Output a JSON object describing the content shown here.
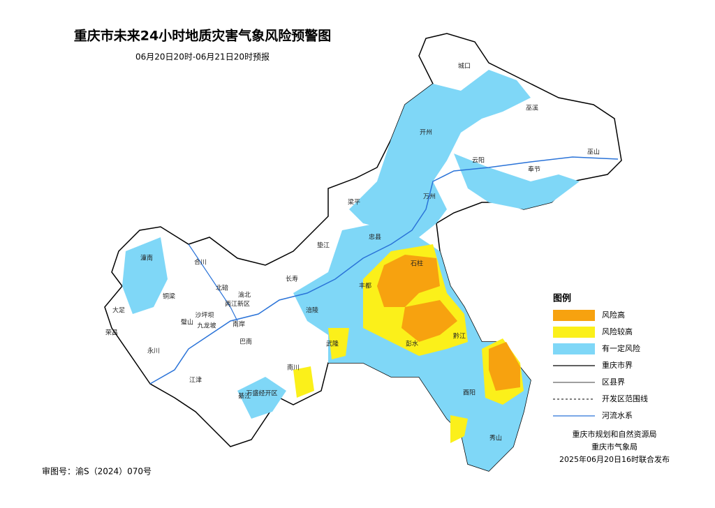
{
  "header": {
    "title": "重庆市未来24小时地质灾害气象风险预警图",
    "subtitle": "06月20日20时-06月21日20时预报"
  },
  "legend": {
    "title": "图例",
    "items": [
      {
        "label": "风险高",
        "color": "#f7a20f",
        "style": "fill"
      },
      {
        "label": "风险较高",
        "color": "#fbf01a",
        "style": "fill"
      },
      {
        "label": "有一定风险",
        "color": "#7fd7f7",
        "style": "fill"
      },
      {
        "label": "重庆市界",
        "color": "#000000",
        "style": "solid"
      },
      {
        "label": "区县界",
        "color": "#666666",
        "style": "solid"
      },
      {
        "label": "开发区范围线",
        "color": "#333333",
        "style": "dashed"
      },
      {
        "label": "河流水系",
        "color": "#2a73d8",
        "style": "solid"
      }
    ]
  },
  "districts": [
    "城口",
    "巫溪",
    "开州",
    "云阳",
    "奉节",
    "巫山",
    "万州",
    "梁平",
    "忠县",
    "石柱",
    "垫江",
    "潼南",
    "合川",
    "长寿",
    "丰都",
    "北碚",
    "渝北",
    "两江新区",
    "铜梁",
    "大足",
    "涪陵",
    "沙坪坝",
    "九龙坡",
    "南岸",
    "璧山",
    "巴南",
    "荣昌",
    "永川",
    "武隆",
    "彭水",
    "黔江",
    "南川",
    "江津",
    "万盛经开区",
    "綦江",
    "酉阳",
    "秀山"
  ],
  "footer": {
    "publishers": [
      "重庆市规划和自然资源局",
      "重庆市气象局",
      "2025年06月20日16时联合发布"
    ],
    "review_number": "审图号：渝S（2024）070号"
  }
}
